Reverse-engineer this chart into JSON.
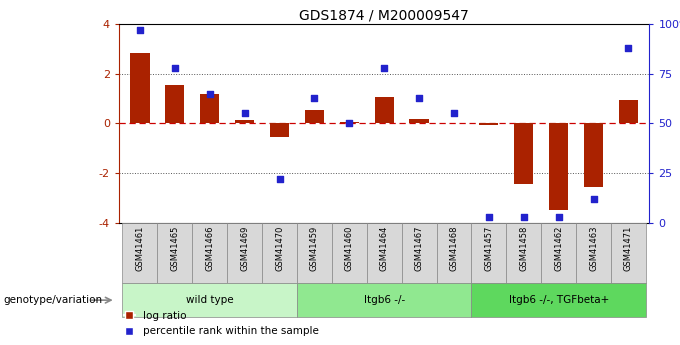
{
  "title": "GDS1874 / M200009547",
  "samples": [
    "GSM41461",
    "GSM41465",
    "GSM41466",
    "GSM41469",
    "GSM41470",
    "GSM41459",
    "GSM41460",
    "GSM41464",
    "GSM41467",
    "GSM41468",
    "GSM41457",
    "GSM41458",
    "GSM41462",
    "GSM41463",
    "GSM41471"
  ],
  "log_ratio": [
    2.85,
    1.55,
    1.2,
    0.12,
    -0.55,
    0.55,
    0.05,
    1.05,
    0.18,
    0.0,
    -0.05,
    -2.45,
    -3.5,
    -2.55,
    0.95
  ],
  "percentile_rank": [
    97,
    78,
    65,
    55,
    22,
    63,
    50,
    78,
    63,
    55,
    3,
    3,
    3,
    12,
    88
  ],
  "groups": [
    {
      "label": "wild type",
      "start": 0,
      "end": 5,
      "color": "#c8f5c8"
    },
    {
      "label": "Itgb6 -/-",
      "start": 5,
      "end": 10,
      "color": "#90e890"
    },
    {
      "label": "Itgb6 -/-, TGFbeta+",
      "start": 10,
      "end": 15,
      "color": "#5ed85e"
    }
  ],
  "bar_color": "#aa2200",
  "dot_color": "#2222cc",
  "ylim": [
    -4,
    4
  ],
  "yticks_left": [
    -4,
    -2,
    0,
    2,
    4
  ],
  "yticks_right": [
    0,
    25,
    50,
    75,
    100
  ],
  "hline_color": "#cc0000",
  "dotted_color": "#555555",
  "background": "#ffffff",
  "legend_red_label": "log ratio",
  "legend_blue_label": "percentile rank within the sample",
  "genotype_label": "genotype/variation"
}
